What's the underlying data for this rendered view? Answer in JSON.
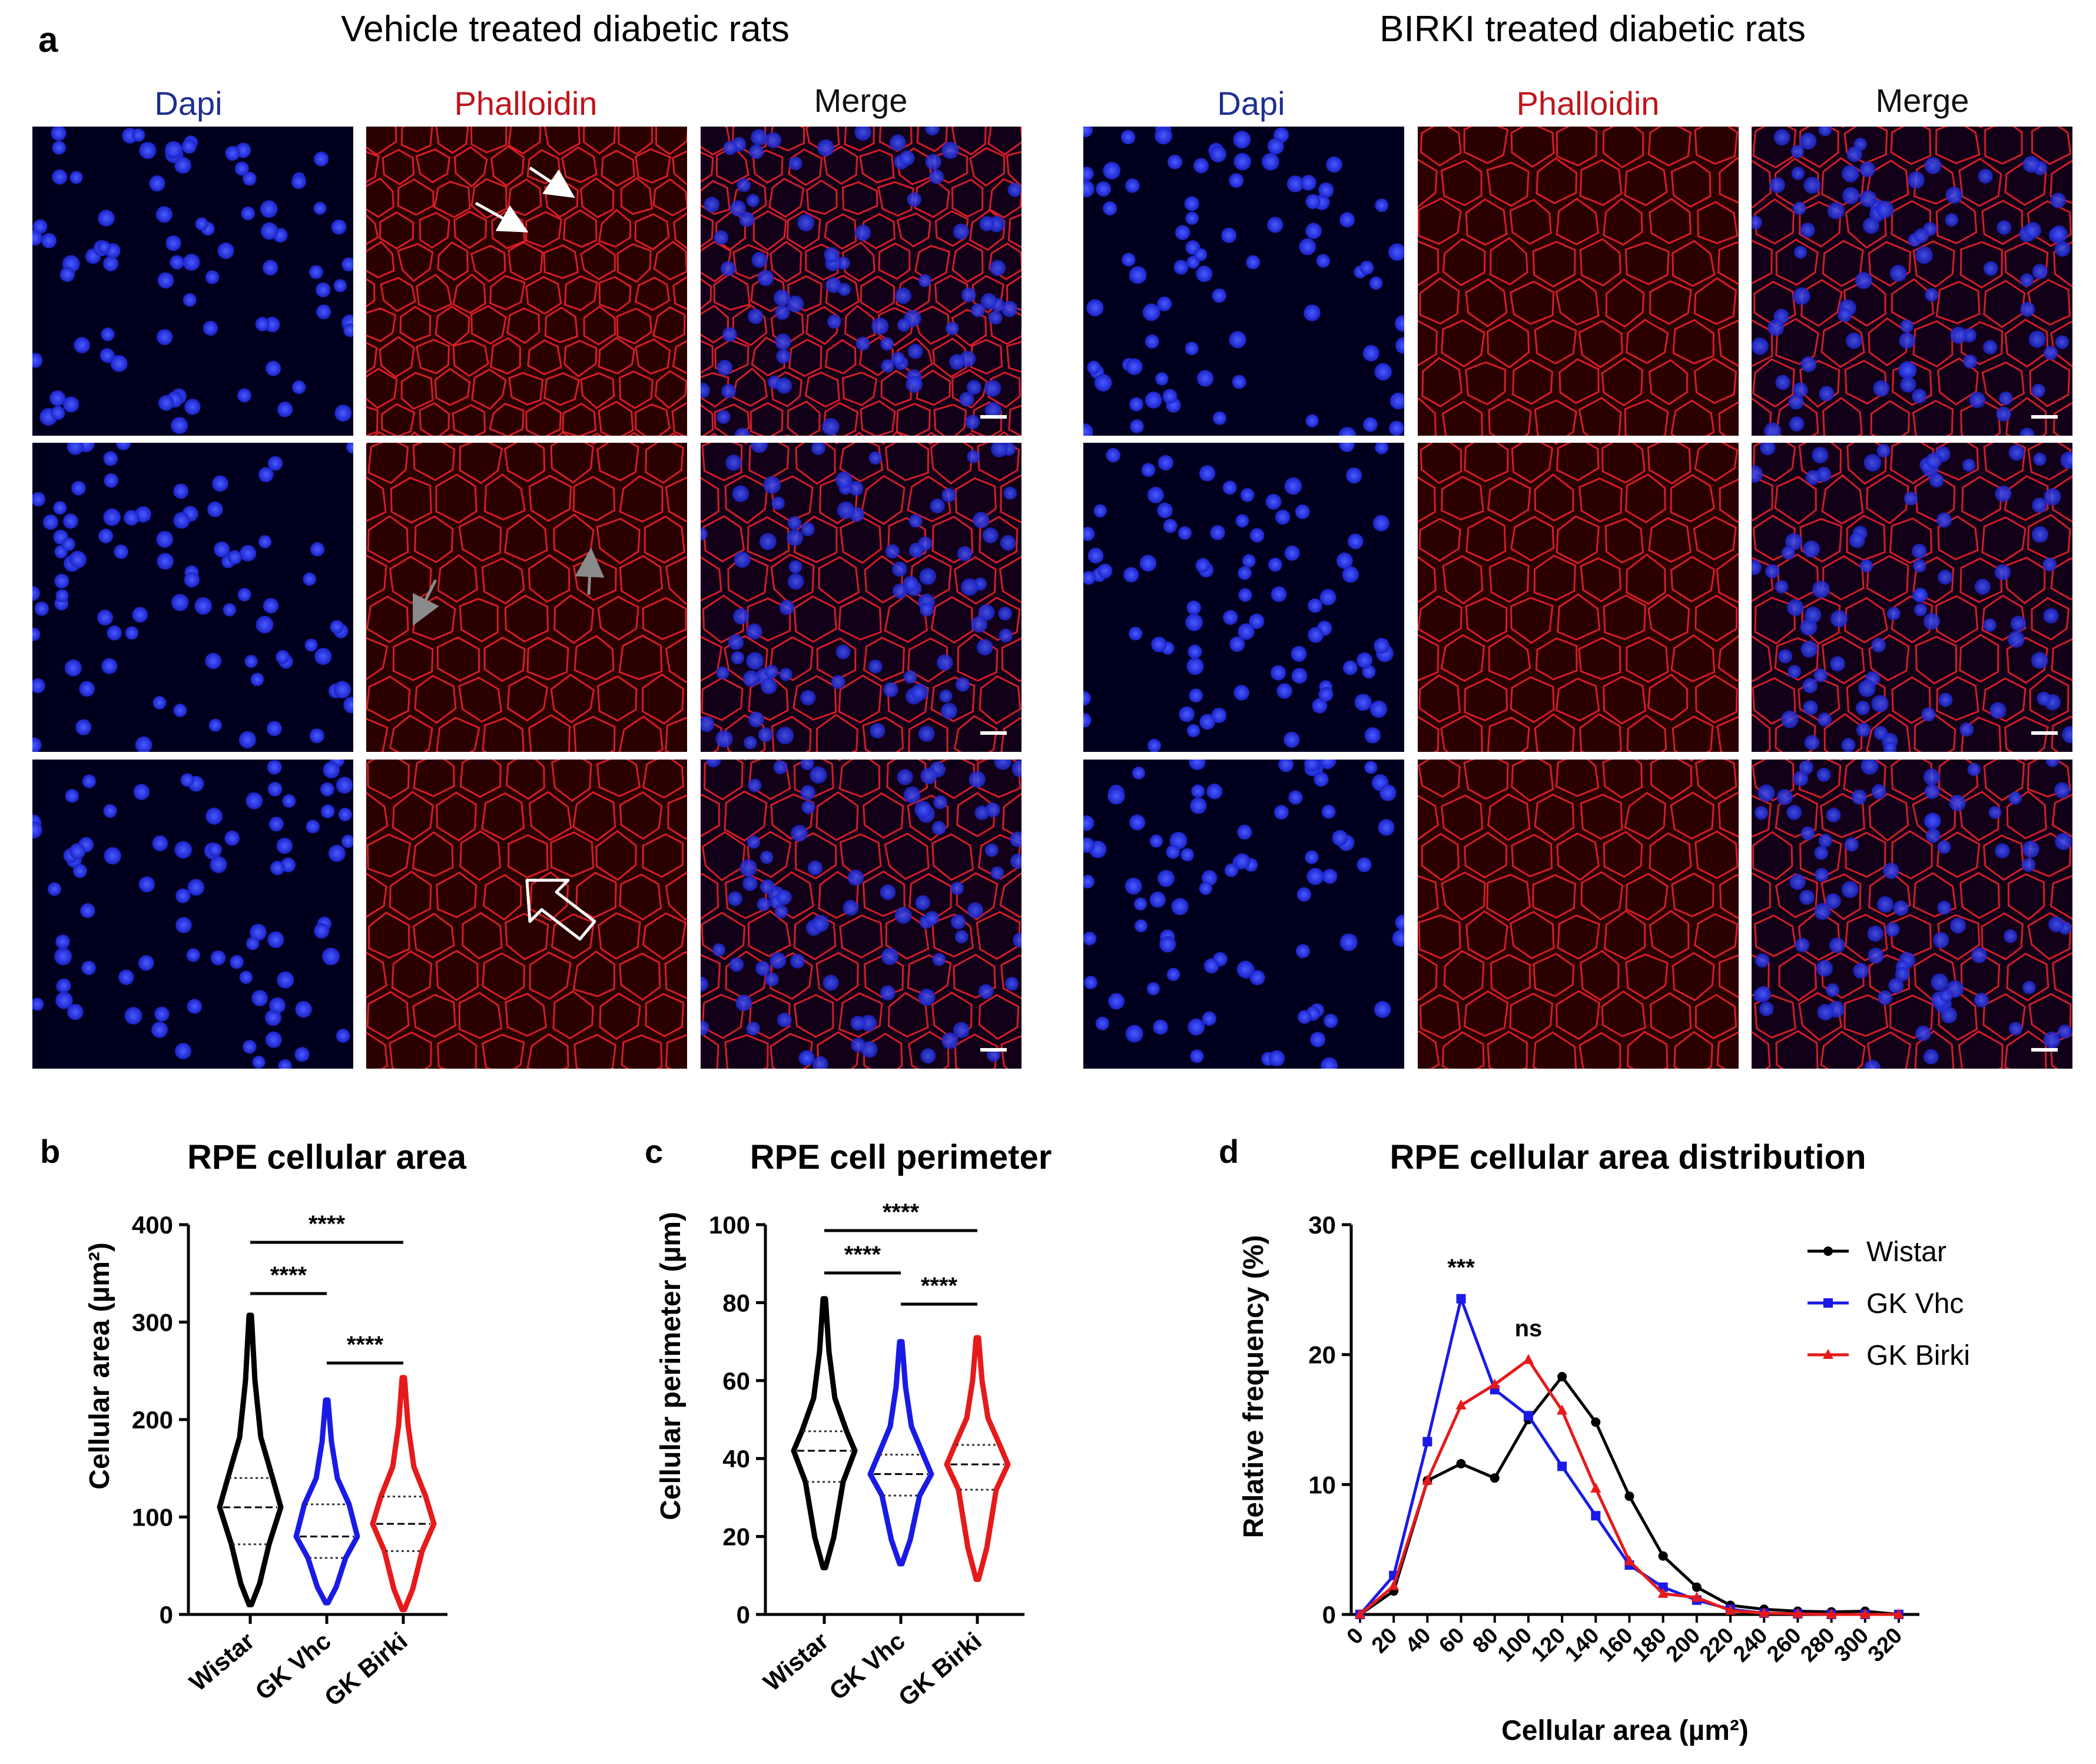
{
  "panel_a": {
    "letter": "a",
    "group_titles": [
      "Vehicle treated diabetic rats",
      "BIRKI treated diabetic rats"
    ],
    "channel_labels": [
      "Dapi",
      "Phalloidin",
      "Merge"
    ],
    "colors": {
      "dapi": "#1f2f8f",
      "phalloidin": "#c0141c",
      "merge": "#111111"
    }
  },
  "chart_data": [
    {
      "panel": "b",
      "type": "violin",
      "title": "RPE cellular area",
      "ylabel": "Cellular area (µm²)",
      "ylim": [
        0,
        400
      ],
      "yticks": [
        0,
        100,
        200,
        300,
        400
      ],
      "categories": [
        "Wistar",
        "GK Vhc",
        "GK Birki"
      ],
      "colors": [
        "#000000",
        "#1a1ae6",
        "#e61a1a"
      ],
      "medians": [
        110,
        80,
        93
      ],
      "quartiles": [
        [
          72,
          140
        ],
        [
          58,
          113
        ],
        [
          65,
          121
        ]
      ],
      "range": [
        [
          10,
          307
        ],
        [
          12,
          220
        ],
        [
          5,
          243
        ]
      ],
      "significance": [
        {
          "pair": [
            "Wistar",
            "GK Vhc"
          ],
          "label": "****"
        },
        {
          "pair": [
            "GK Vhc",
            "GK Birki"
          ],
          "label": "****"
        },
        {
          "pair": [
            "Wistar",
            "GK Birki"
          ],
          "label": "****"
        }
      ]
    },
    {
      "panel": "c",
      "type": "violin",
      "title": "RPE cell perimeter",
      "ylabel": "Cellular perimeter (µm)",
      "ylim": [
        0,
        100
      ],
      "yticks": [
        0,
        20,
        40,
        60,
        80,
        100
      ],
      "categories": [
        "Wistar",
        "GK Vhc",
        "GK Birki"
      ],
      "colors": [
        "#000000",
        "#1a1ae6",
        "#e61a1a"
      ],
      "medians": [
        42,
        36,
        38.5
      ],
      "quartiles": [
        [
          34,
          47
        ],
        [
          30.5,
          41
        ],
        [
          32,
          43.5
        ]
      ],
      "range": [
        [
          12,
          81
        ],
        [
          13,
          70
        ],
        [
          9,
          71
        ]
      ],
      "significance": [
        {
          "pair": [
            "Wistar",
            "GK Vhc"
          ],
          "label": "****"
        },
        {
          "pair": [
            "GK Vhc",
            "GK Birki"
          ],
          "label": "****"
        },
        {
          "pair": [
            "Wistar",
            "GK Birki"
          ],
          "label": "****"
        }
      ]
    },
    {
      "panel": "d",
      "type": "line",
      "title": "RPE cellular area distribution",
      "xlabel": "Cellular area (µm²)",
      "ylabel": "Relative frequency (%)",
      "ylim": [
        0,
        30
      ],
      "yticks": [
        0,
        10,
        20,
        30
      ],
      "x": [
        0,
        20,
        40,
        60,
        80,
        100,
        120,
        140,
        160,
        180,
        200,
        220,
        240,
        260,
        280,
        300,
        320
      ],
      "series": [
        {
          "name": "Wistar",
          "color": "#000000",
          "marker": "circle",
          "values": [
            0,
            1.8,
            10.3,
            11.6,
            10.5,
            15,
            18.3,
            14.8,
            9.1,
            4.5,
            2.1,
            0.7,
            0.4,
            0.25,
            0.2,
            0.25,
            0
          ]
        },
        {
          "name": "GK Vhc",
          "color": "#1a1ae6",
          "marker": "square",
          "values": [
            0,
            3,
            13.3,
            24.3,
            17.3,
            15.3,
            11.4,
            7.6,
            3.8,
            2.1,
            1.1,
            0.4,
            0.1,
            0.05,
            0,
            0,
            0
          ]
        },
        {
          "name": "GK Birki",
          "color": "#e61a1a",
          "marker": "triangle",
          "values": [
            0,
            2.2,
            10.3,
            16.1,
            17.7,
            19.6,
            15.7,
            9.7,
            4.1,
            1.6,
            1.3,
            0.3,
            0.1,
            0.05,
            0,
            0,
            0
          ]
        }
      ],
      "annotations": [
        {
          "x": 60,
          "label": "***"
        },
        {
          "x": 100,
          "label": "ns"
        }
      ],
      "legend": "top-right"
    }
  ]
}
